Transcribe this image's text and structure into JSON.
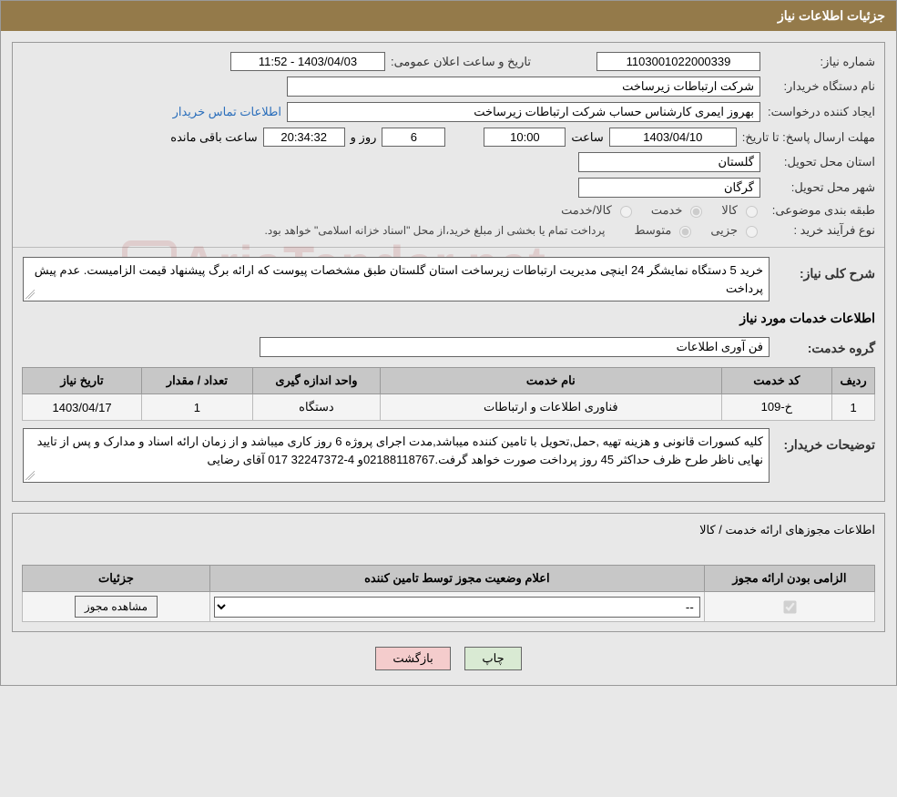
{
  "header_title": "جزئیات اطلاعات نیاز",
  "labels": {
    "need_number": "شماره نیاز:",
    "announce_datetime": "تاریخ و ساعت اعلان عمومی:",
    "buyer_org": "نام دستگاه خریدار:",
    "requester": "ایجاد کننده درخواست:",
    "contact_link": "اطلاعات تماس خریدار",
    "deadline": "مهلت ارسال پاسخ: تا تاریخ:",
    "hour_word": "ساعت",
    "days_and": "روز و",
    "hours_remaining": "ساعت باقی مانده",
    "delivery_province": "استان محل تحویل:",
    "delivery_city": "شهر محل تحویل:",
    "subject_class": "طبقه بندی موضوعی:",
    "purchase_type": "نوع فرآیند خرید :",
    "payment_note": "پرداخت تمام یا بخشی از مبلغ خرید،از محل \"اسناد خزانه اسلامی\" خواهد بود.",
    "need_desc_label": "شرح کلی نیاز:",
    "services_info_title": "اطلاعات خدمات مورد نیاز",
    "service_group_label": "گروه خدمت:",
    "buyer_notes_label": "توضیحات خریدار:",
    "license_section_title": "اطلاعات مجوزهای ارائه خدمت / کالا"
  },
  "fields": {
    "need_number": "1103001022000339",
    "announce_datetime": "1403/04/03 - 11:52",
    "buyer_org": "شرکت ارتباطات زیرساخت",
    "requester": "بهروز ایمری کارشناس حساب شرکت ارتباطات زیرساخت",
    "deadline_date": "1403/04/10",
    "deadline_time": "10:00",
    "remaining_days": "6",
    "remaining_hours": "20:34:32",
    "province": "گلستان",
    "city": "گرگان",
    "service_group": "فن آوری اطلاعات"
  },
  "radios": {
    "subject": {
      "options": [
        "کالا",
        "خدمت",
        "کالا/خدمت"
      ],
      "selected_index": 1
    },
    "purchase": {
      "options": [
        "جزیی",
        "متوسط"
      ],
      "selected_index": 1
    }
  },
  "need_description": "خرید 5 دستگاه نمایشگر 24 اینچی مدیریت ارتباطات زیرساخت استان گلستان طبق مشخصات پیوست که ارائه برگ پیشنهاد قیمت الزامیست. عدم پیش پرداخت",
  "services_table": {
    "columns": [
      "ردیف",
      "کد خدمت",
      "نام خدمت",
      "واحد اندازه گیری",
      "تعداد / مقدار",
      "تاریخ نیاز"
    ],
    "col_widths": [
      "5%",
      "13%",
      "40%",
      "15%",
      "13%",
      "14%"
    ],
    "rows": [
      [
        "1",
        "خ-109",
        "فناوری اطلاعات و ارتباطات",
        "دستگاه",
        "1",
        "1403/04/17"
      ]
    ]
  },
  "buyer_notes": "کلیه کسورات قانونی و هزینه تهیه ,حمل,تحویل با تامین کننده میباشد,مدت اجرای پروژه 6 روز کاری میباشد و از زمان ارائه اسناد و مدارک و پس از تایید نهایی ناظر طرح ظرف حداکثر 45 روز پرداخت صورت خواهد گرفت.02188118767و 4-32247372 017 آقای رضایی",
  "license_table": {
    "columns": [
      "الزامی بودن ارائه مجوز",
      "اعلام وضعیت مجوز توسط تامین کننده",
      "جزئیات"
    ],
    "col_widths": [
      "20%",
      "58%",
      "22%"
    ],
    "row": {
      "mandatory_checked": true,
      "select_value": "--",
      "details_button": "مشاهده مجوز"
    }
  },
  "buttons": {
    "print": "چاپ",
    "back": "بازگشت"
  },
  "watermark_text": "AriaTender.net",
  "colors": {
    "header_bg": "#947a4a",
    "panel_border": "#999999",
    "th_bg": "#c7c7c7",
    "btn_print_bg": "#d9ead3",
    "btn_back_bg": "#f4cccc",
    "link_color": "#2a6ebb"
  }
}
